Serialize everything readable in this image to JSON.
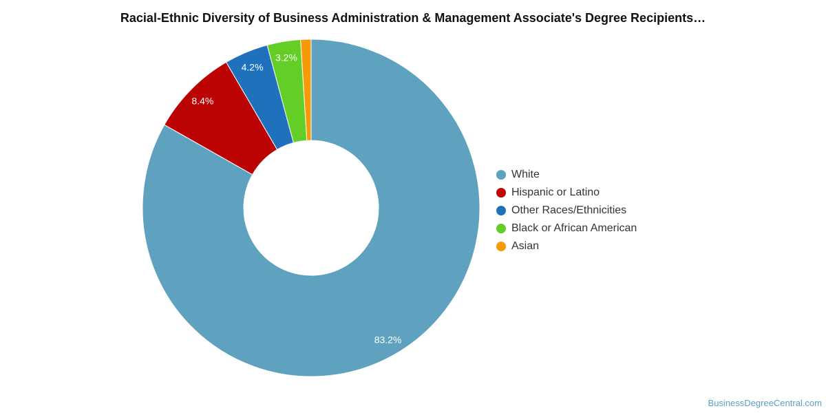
{
  "chart_data": {
    "type": "pie",
    "title": "Racial-Ethnic Diversity of Business Administration & Management Associate's Degree Recipients…",
    "donut": true,
    "legend_position": "right",
    "slices": [
      {
        "name": "White",
        "value": 83.2,
        "label": "83.2%",
        "color": "#5ea2bf"
      },
      {
        "name": "Hispanic or Latino",
        "value": 8.4,
        "label": "8.4%",
        "color": "#bb0303"
      },
      {
        "name": "Other Races/Ethnicities",
        "value": 4.2,
        "label": "4.2%",
        "color": "#1f71bc"
      },
      {
        "name": "Black or African American",
        "value": 3.2,
        "label": "3.2%",
        "color": "#63ce25"
      },
      {
        "name": "Asian",
        "value": 1.0,
        "label": "",
        "color": "#f79a0a"
      }
    ]
  },
  "footer": {
    "source": "BusinessDegreeCentral.com"
  }
}
